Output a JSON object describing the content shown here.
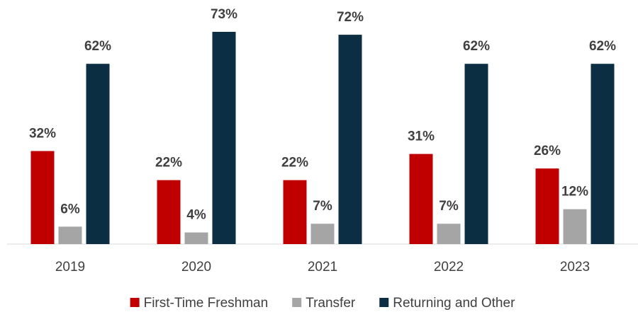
{
  "chart_data": {
    "type": "bar",
    "categories": [
      "2019",
      "2020",
      "2021",
      "2022",
      "2023"
    ],
    "series": [
      {
        "name": "First-Time Freshman",
        "color": "#c00000",
        "values": [
          32,
          22,
          22,
          31,
          26
        ],
        "value_labels": [
          "32%",
          "22%",
          "22%",
          "31%",
          "26%"
        ]
      },
      {
        "name": "Transfer",
        "color": "#a5a5a5",
        "values": [
          6,
          4,
          7,
          7,
          12
        ],
        "value_labels": [
          "6%",
          "4%",
          "7%",
          "7%",
          "12%"
        ]
      },
      {
        "name": "Returning and Other",
        "color": "#0b2e42",
        "values": [
          62,
          73,
          72,
          62,
          62
        ],
        "value_labels": [
          "62%",
          "73%",
          "72%",
          "62%",
          "62%"
        ]
      }
    ],
    "legend": "bottom"
  }
}
